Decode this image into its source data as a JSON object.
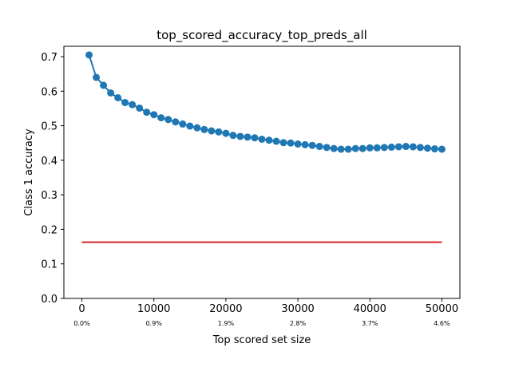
{
  "chart_data": {
    "type": "line",
    "title": "top_scored_accuracy_top_preds_all",
    "xlabel": "Top scored set size",
    "ylabel": "Class 1 accuracy",
    "xlim": [
      -2500,
      52500
    ],
    "ylim": [
      0.0,
      0.73
    ],
    "grid": false,
    "x_ticks": [
      0,
      10000,
      20000,
      30000,
      40000,
      50000
    ],
    "x_tick_labels": [
      "0",
      "10000",
      "20000",
      "30000",
      "40000",
      "50000"
    ],
    "x_secondary_tick_labels": [
      "0.0%",
      "0.9%",
      "1.9%",
      "2.8%",
      "3.7%",
      "4.6%"
    ],
    "y_ticks": [
      0.0,
      0.1,
      0.2,
      0.3,
      0.4,
      0.5,
      0.6,
      0.7
    ],
    "y_tick_labels": [
      "0.0",
      "0.1",
      "0.2",
      "0.3",
      "0.4",
      "0.5",
      "0.6",
      "0.7"
    ],
    "series": [
      {
        "color": "#1f77b4",
        "marker": "circle",
        "x": [
          1000,
          2000,
          3000,
          4000,
          5000,
          6000,
          7000,
          8000,
          9000,
          10000,
          11000,
          12000,
          13000,
          14000,
          15000,
          16000,
          17000,
          18000,
          19000,
          20000,
          21000,
          22000,
          23000,
          24000,
          25000,
          26000,
          27000,
          28000,
          29000,
          30000,
          31000,
          32000,
          33000,
          34000,
          35000,
          36000,
          37000,
          38000,
          39000,
          40000,
          41000,
          42000,
          43000,
          44000,
          45000,
          46000,
          47000,
          48000,
          49000,
          50000
        ],
        "y": [
          0.705,
          0.64,
          0.617,
          0.595,
          0.581,
          0.567,
          0.561,
          0.551,
          0.539,
          0.532,
          0.523,
          0.518,
          0.511,
          0.505,
          0.499,
          0.494,
          0.489,
          0.485,
          0.482,
          0.478,
          0.472,
          0.469,
          0.467,
          0.465,
          0.461,
          0.458,
          0.455,
          0.451,
          0.45,
          0.447,
          0.445,
          0.443,
          0.44,
          0.437,
          0.434,
          0.432,
          0.432,
          0.434,
          0.434,
          0.436,
          0.436,
          0.437,
          0.438,
          0.439,
          0.44,
          0.439,
          0.437,
          0.435,
          0.433,
          0.432
        ]
      },
      {
        "color": "#d62728",
        "marker": "none",
        "x": [
          0,
          50000
        ],
        "y": [
          0.163,
          0.163
        ]
      }
    ]
  }
}
